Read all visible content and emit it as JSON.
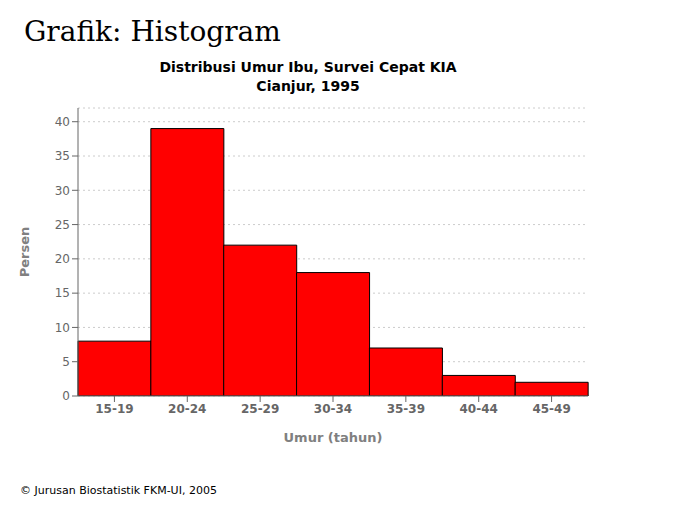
{
  "chart_data": {
    "type": "bar",
    "title": "Grafik: Histogram",
    "subtitle": "Distribusi Umur Ibu, Survei Cepat KIA\nCianjur, 1995",
    "categories": [
      "15-19",
      "20-24",
      "25-29",
      "30-34",
      "35-39",
      "40-44",
      "45-49"
    ],
    "values": [
      8,
      39,
      22,
      18,
      7,
      3,
      2
    ],
    "color": "#FF0000",
    "xlabel": "Umur (tahun)",
    "ylabel": "Persen",
    "ylim": [
      0,
      42
    ],
    "yticks": [
      0,
      5,
      10,
      15,
      20,
      25,
      30,
      35,
      40
    ],
    "grid": true,
    "annotations": [
      "© Jurusan Biostatistik FKM-UI, 2005"
    ]
  }
}
